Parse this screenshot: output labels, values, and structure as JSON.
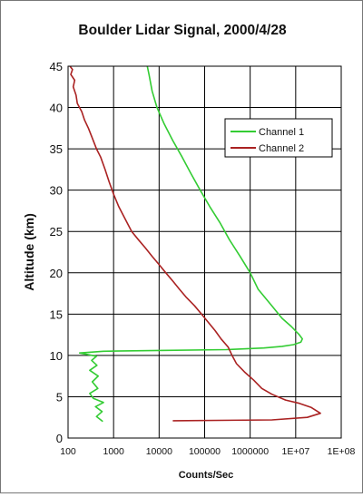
{
  "chart_data": {
    "type": "line",
    "title": "Boulder Lidar Signal, 2000/4/28",
    "xlabel": "Counts/Sec",
    "ylabel": "Altitude (km)",
    "x_scale": "log",
    "xlim": [
      100,
      100000000
    ],
    "ylim": [
      0,
      45
    ],
    "x_ticks": [
      "100",
      "1000",
      "10000",
      "100000",
      "1000000",
      "1E+07",
      "1E+08"
    ],
    "x_tick_values": [
      100,
      1000,
      10000,
      100000,
      1000000,
      10000000,
      100000000
    ],
    "y_ticks": [
      "0",
      "5",
      "10",
      "15",
      "20",
      "25",
      "30",
      "35",
      "40",
      "45"
    ],
    "y_tick_values": [
      0,
      5,
      10,
      15,
      20,
      25,
      30,
      35,
      40,
      45
    ],
    "grid": true,
    "legend_position": "top-right",
    "series": [
      {
        "name": "Channel 1",
        "color": "#33cc33",
        "points": [
          [
            580,
            2.0
          ],
          [
            420,
            2.6
          ],
          [
            560,
            3.2
          ],
          [
            400,
            3.8
          ],
          [
            600,
            4.3
          ],
          [
            360,
            4.8
          ],
          [
            300,
            5.4
          ],
          [
            450,
            6.0
          ],
          [
            340,
            6.8
          ],
          [
            460,
            7.5
          ],
          [
            300,
            8.2
          ],
          [
            430,
            8.8
          ],
          [
            330,
            9.4
          ],
          [
            420,
            9.9
          ],
          [
            180,
            10.3
          ],
          [
            600,
            10.5
          ],
          [
            10000,
            10.6
          ],
          [
            300000,
            10.7
          ],
          [
            2000000,
            10.9
          ],
          [
            5000000,
            11.1
          ],
          [
            9000000,
            11.3
          ],
          [
            13000000,
            11.6
          ],
          [
            14000000,
            12.0
          ],
          [
            12000000,
            12.5
          ],
          [
            8000000,
            13.5
          ],
          [
            5000000,
            14.5
          ],
          [
            3000000,
            16.0
          ],
          [
            1500000,
            18.0
          ],
          [
            1000000,
            20.0
          ],
          [
            600000,
            22.0
          ],
          [
            350000,
            24.0
          ],
          [
            220000,
            26.0
          ],
          [
            130000,
            28.0
          ],
          [
            80000,
            30.0
          ],
          [
            50000,
            32.0
          ],
          [
            32000,
            34.0
          ],
          [
            20000,
            36.0
          ],
          [
            13000,
            38.0
          ],
          [
            9000,
            40.0
          ],
          [
            7000,
            42.0
          ],
          [
            6000,
            44.0
          ],
          [
            5500,
            45.0
          ]
        ]
      },
      {
        "name": "Channel 2",
        "color": "#aa2222",
        "points": [
          [
            20000,
            2.1
          ],
          [
            3000000,
            2.2
          ],
          [
            18000000,
            2.5
          ],
          [
            35000000,
            3.0
          ],
          [
            22000000,
            3.7
          ],
          [
            12000000,
            4.2
          ],
          [
            6000000,
            4.6
          ],
          [
            3000000,
            5.3
          ],
          [
            1800000,
            6.0
          ],
          [
            1200000,
            7.0
          ],
          [
            750000,
            8.0
          ],
          [
            500000,
            9.0
          ],
          [
            400000,
            10.0
          ],
          [
            330000,
            11.0
          ],
          [
            230000,
            12.0
          ],
          [
            170000,
            13.0
          ],
          [
            120000,
            14.0
          ],
          [
            85000,
            15.0
          ],
          [
            60000,
            16.0
          ],
          [
            40000,
            17.0
          ],
          [
            28000,
            18.0
          ],
          [
            20000,
            19.0
          ],
          [
            14000,
            20.0
          ],
          [
            10000,
            21.0
          ],
          [
            7000,
            22.0
          ],
          [
            5000,
            23.0
          ],
          [
            3500,
            24.0
          ],
          [
            2500,
            25.0
          ],
          [
            1800,
            26.5
          ],
          [
            1300,
            28.0
          ],
          [
            1000,
            29.5
          ],
          [
            800,
            31.0
          ],
          [
            650,
            32.5
          ],
          [
            520,
            34.0
          ],
          [
            420,
            35.0
          ],
          [
            330,
            36.5
          ],
          [
            280,
            37.5
          ],
          [
            230,
            38.5
          ],
          [
            200,
            39.5
          ],
          [
            160,
            40.5
          ],
          [
            150,
            41.5
          ],
          [
            130,
            42.5
          ],
          [
            140,
            43.3
          ],
          [
            115,
            44.0
          ],
          [
            125,
            44.6
          ],
          [
            110,
            45.0
          ]
        ]
      }
    ]
  }
}
